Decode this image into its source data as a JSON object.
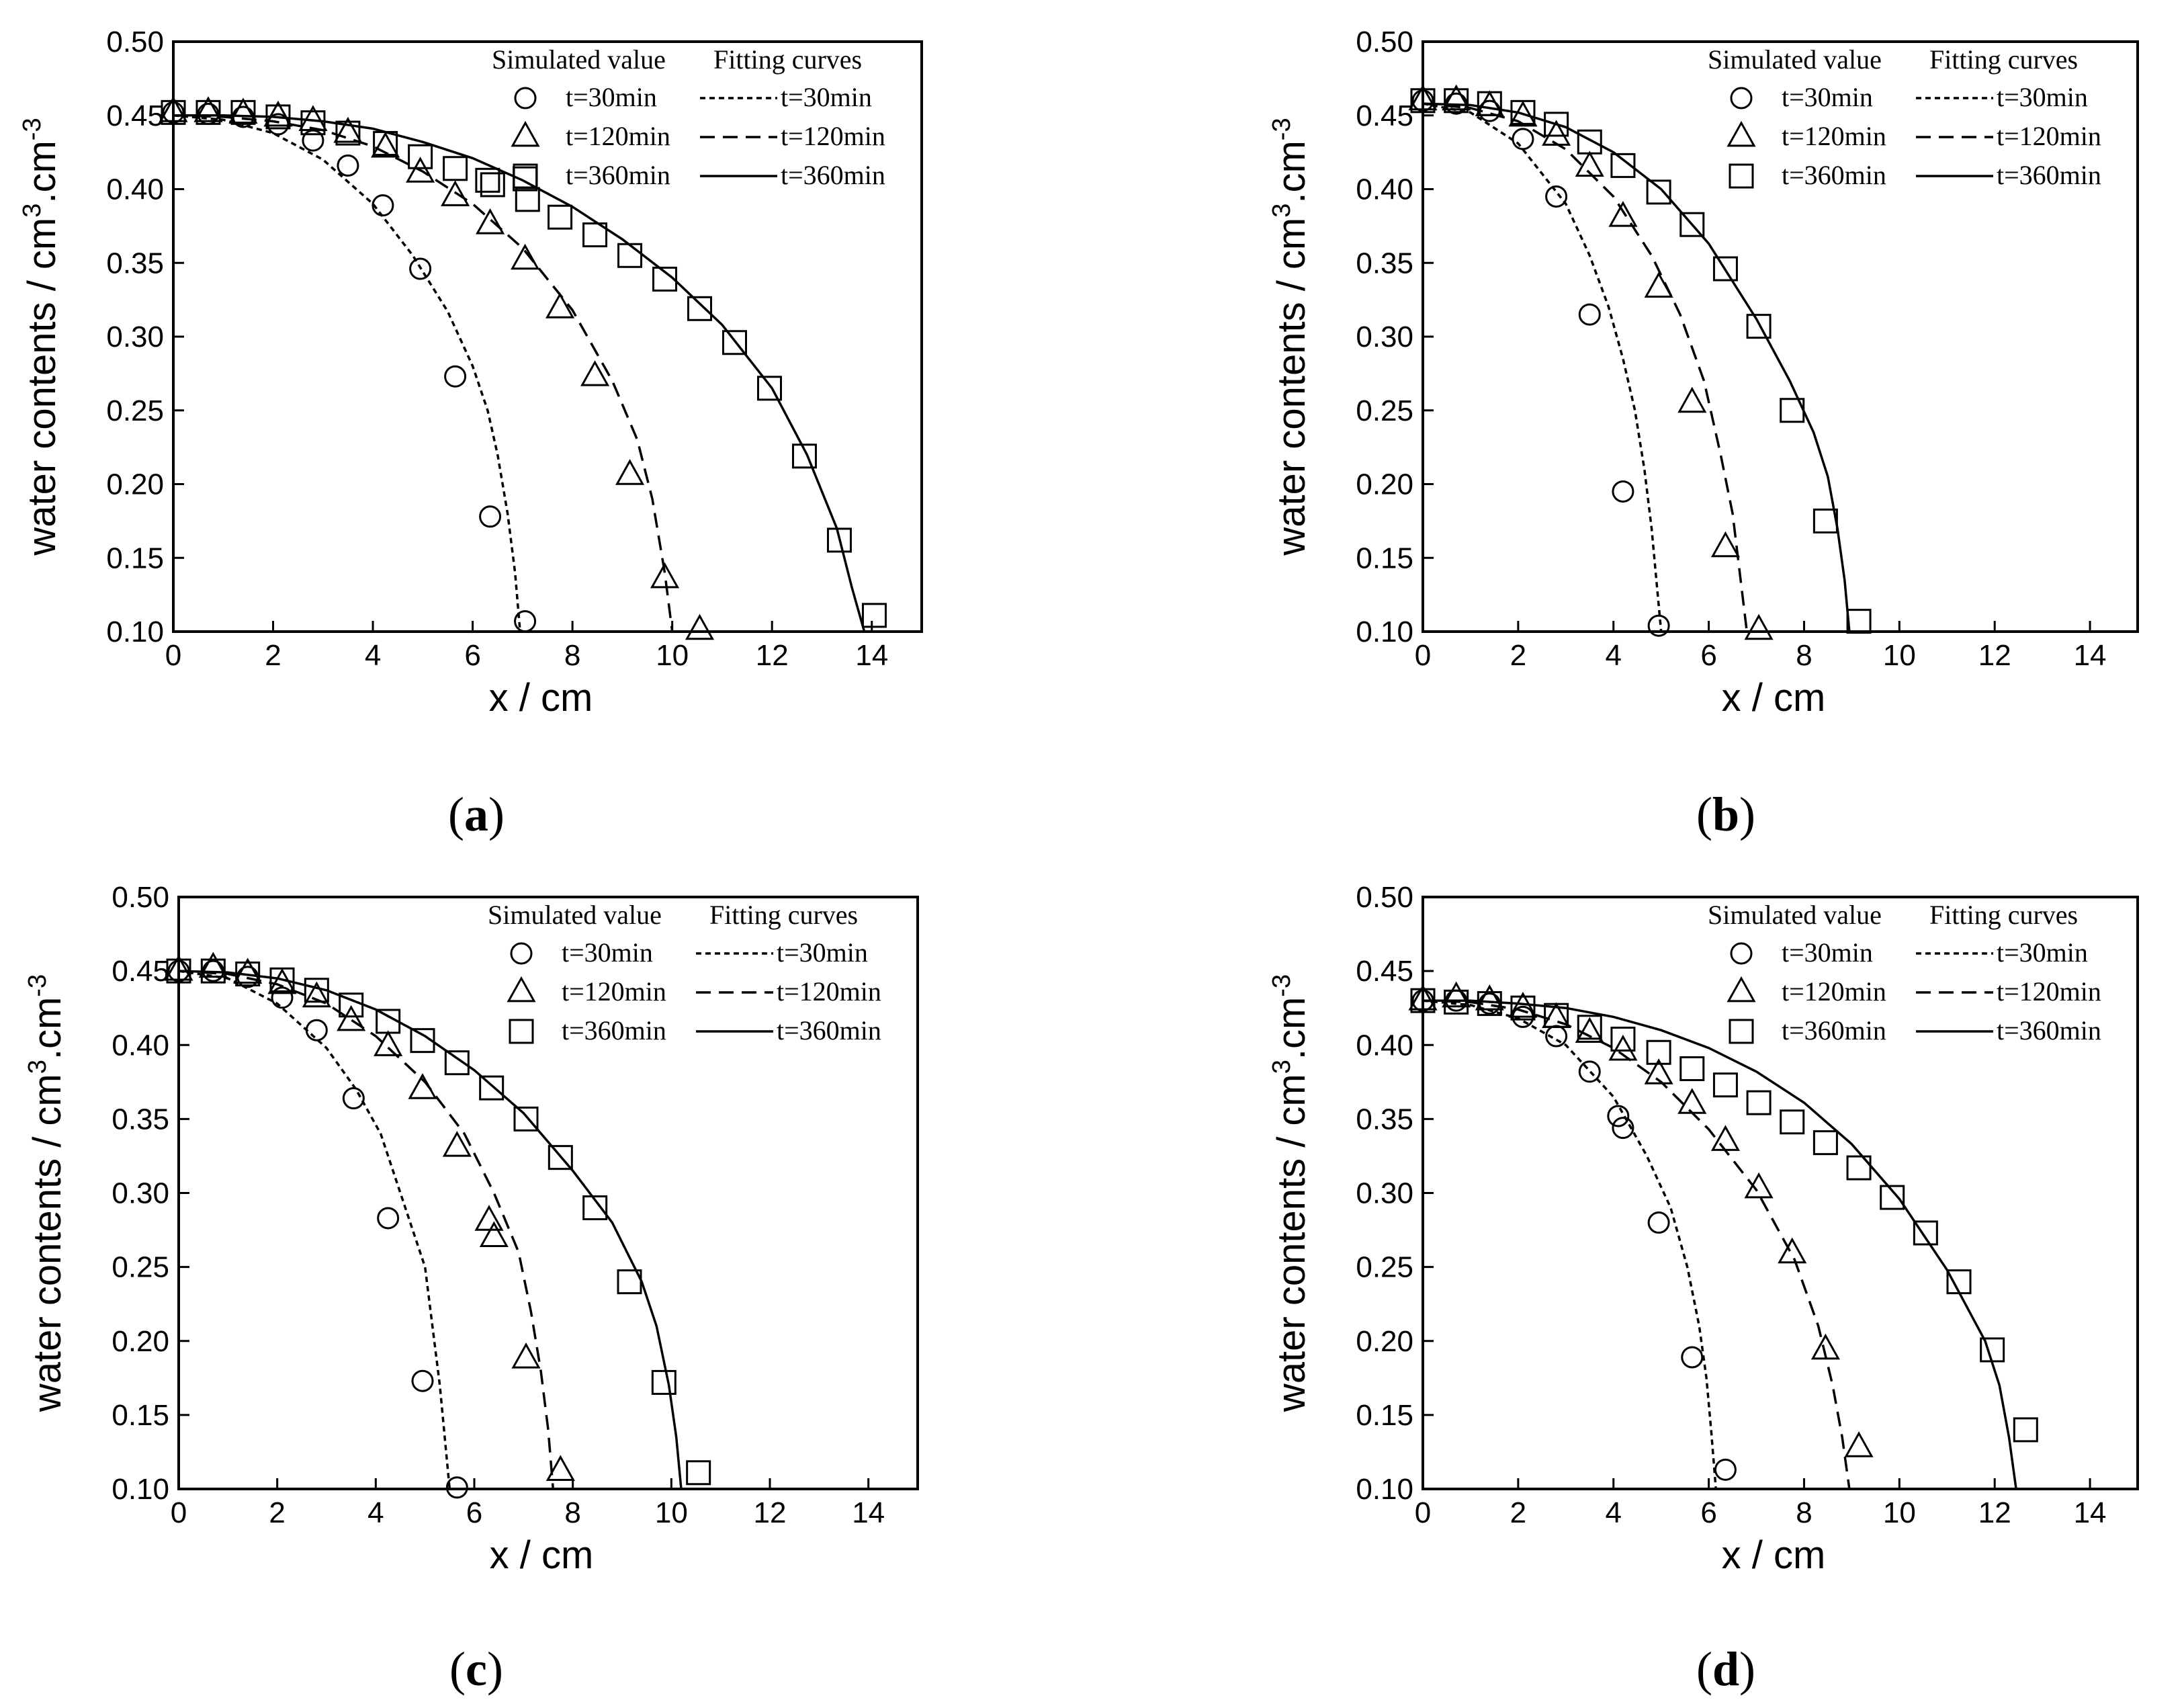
{
  "figure": {
    "panels": [
      {
        "tag_open": "(",
        "tag_letter": "a",
        "tag_close": ")"
      },
      {
        "tag_open": "(",
        "tag_letter": "b",
        "tag_close": ")"
      },
      {
        "tag_open": "(",
        "tag_letter": "c",
        "tag_close": ")"
      },
      {
        "tag_open": "(",
        "tag_letter": "d",
        "tag_close": ")"
      }
    ]
  },
  "chart_data": [
    {
      "type": "scatter",
      "panel": "a",
      "xlabel": "x / cm",
      "ylabel_base": "water contents / cm",
      "ylabel_sup1": "3",
      "ylabel_mid": ".cm",
      "ylabel_sup2": "-3",
      "xlim": [
        0,
        15
      ],
      "ylim": [
        0.1,
        0.5
      ],
      "xticks": [
        0,
        2,
        4,
        6,
        8,
        10,
        12,
        14
      ],
      "yticks": [
        "0.10",
        "0.15",
        "0.20",
        "0.25",
        "0.30",
        "0.35",
        "0.40",
        "0.45",
        "0.50"
      ],
      "legend_position": "top-right",
      "legend_sim_title": "Simulated value",
      "legend_fit_title": "Fitting curves",
      "simulated": [
        {
          "name": "t=30min",
          "marker": "circle",
          "x": [
            0,
            0.7,
            1.4,
            2.1,
            2.8,
            3.5,
            4.2,
            4.95,
            5.65,
            6.35,
            7.05
          ],
          "y": [
            0.452,
            0.451,
            0.449,
            0.444,
            0.433,
            0.416,
            0.389,
            0.346,
            0.273,
            0.178,
            0.107
          ]
        },
        {
          "name": "t=120min",
          "marker": "triangle",
          "x": [
            0,
            0.7,
            1.4,
            2.1,
            2.8,
            3.5,
            4.25,
            4.95,
            5.65,
            6.35,
            7.05,
            7.75,
            8.45,
            9.15,
            9.85,
            10.55
          ],
          "y": [
            0.452,
            0.452,
            0.451,
            0.449,
            0.446,
            0.438,
            0.428,
            0.411,
            0.395,
            0.376,
            0.352,
            0.319,
            0.273,
            0.206,
            0.136,
            0.101
          ]
        },
        {
          "name": "t=360min",
          "marker": "square",
          "x": [
            0,
            0.7,
            1.4,
            2.1,
            2.8,
            3.5,
            4.25,
            4.95,
            5.65,
            6.3,
            6.4,
            7.05,
            7.1,
            7.75,
            8.45,
            9.15,
            9.85,
            10.55,
            11.25,
            11.95,
            12.65,
            13.35,
            14.05
          ],
          "y": [
            0.452,
            0.452,
            0.452,
            0.449,
            0.445,
            0.438,
            0.431,
            0.422,
            0.414,
            0.406,
            0.403,
            0.407,
            0.393,
            0.381,
            0.369,
            0.355,
            0.339,
            0.319,
            0.296,
            0.265,
            0.219,
            0.162,
            0.111
          ]
        }
      ],
      "fitting": [
        {
          "name": "t=30min",
          "dash": "dotted",
          "x": [
            0,
            1,
            2,
            3,
            4,
            4.8,
            5.5,
            6.0,
            6.3,
            6.5,
            6.7,
            6.85,
            6.95
          ],
          "y": [
            0.45,
            0.447,
            0.438,
            0.42,
            0.39,
            0.355,
            0.317,
            0.28,
            0.25,
            0.22,
            0.18,
            0.14,
            0.1
          ]
        },
        {
          "name": "t=120min",
          "dash": "dashed",
          "x": [
            0,
            1,
            2,
            3,
            4,
            5,
            6,
            7,
            8,
            8.8,
            9.3,
            9.6,
            9.85,
            10.0
          ],
          "y": [
            0.45,
            0.449,
            0.446,
            0.44,
            0.429,
            0.412,
            0.39,
            0.36,
            0.318,
            0.27,
            0.23,
            0.19,
            0.14,
            0.1
          ]
        },
        {
          "name": "t=360min",
          "dash": "solid",
          "x": [
            0,
            1,
            2,
            3,
            4,
            5,
            6,
            7,
            8,
            9,
            10,
            11,
            12,
            12.7,
            13.3,
            13.6,
            13.85
          ],
          "y": [
            0.45,
            0.45,
            0.449,
            0.446,
            0.441,
            0.432,
            0.421,
            0.406,
            0.388,
            0.366,
            0.34,
            0.308,
            0.265,
            0.22,
            0.17,
            0.13,
            0.1
          ]
        }
      ]
    },
    {
      "type": "scatter",
      "panel": "b",
      "xlabel": "x / cm",
      "ylabel_base": "water contents / cm",
      "ylabel_sup1": "3",
      "ylabel_mid": ".cm",
      "ylabel_sup2": "-3",
      "xlim": [
        0,
        15
      ],
      "ylim": [
        0.1,
        0.5
      ],
      "xticks": [
        0,
        2,
        4,
        6,
        8,
        10,
        12,
        14
      ],
      "yticks": [
        "0.10",
        "0.15",
        "0.20",
        "0.25",
        "0.30",
        "0.35",
        "0.40",
        "0.45",
        "0.50"
      ],
      "legend_position": "top-right",
      "legend_sim_title": "Simulated value",
      "legend_fit_title": "Fitting curves",
      "simulated": [
        {
          "name": "t=30min",
          "marker": "circle",
          "x": [
            0,
            0.7,
            1.4,
            2.1,
            2.8,
            3.5,
            4.2,
            4.95
          ],
          "y": [
            0.46,
            0.458,
            0.453,
            0.434,
            0.395,
            0.315,
            0.195,
            0.104
          ]
        },
        {
          "name": "t=120min",
          "marker": "triangle",
          "x": [
            0,
            0.7,
            1.4,
            2.1,
            2.8,
            3.5,
            4.2,
            4.95,
            5.65,
            6.35,
            7.05
          ],
          "y": [
            0.46,
            0.46,
            0.456,
            0.449,
            0.436,
            0.415,
            0.381,
            0.333,
            0.255,
            0.157,
            0.101
          ]
        },
        {
          "name": "t=360min",
          "marker": "square",
          "x": [
            0,
            0.7,
            1.4,
            2.1,
            2.8,
            3.5,
            4.2,
            4.95,
            5.65,
            6.35,
            7.05,
            7.75,
            8.45,
            9.15
          ],
          "y": [
            0.46,
            0.46,
            0.458,
            0.452,
            0.444,
            0.432,
            0.416,
            0.398,
            0.376,
            0.346,
            0.307,
            0.25,
            0.175,
            0.107
          ]
        }
      ],
      "fitting": [
        {
          "name": "t=30min",
          "dash": "dotted",
          "x": [
            0,
            1,
            2,
            3,
            3.5,
            3.9,
            4.2,
            4.45,
            4.65,
            4.8,
            4.9,
            5.0
          ],
          "y": [
            0.458,
            0.452,
            0.431,
            0.39,
            0.355,
            0.32,
            0.285,
            0.25,
            0.21,
            0.17,
            0.135,
            0.1
          ]
        },
        {
          "name": "t=120min",
          "dash": "dashed",
          "x": [
            0,
            1,
            2,
            3,
            4,
            4.8,
            5.4,
            5.9,
            6.25,
            6.5,
            6.65,
            6.8
          ],
          "y": [
            0.458,
            0.455,
            0.446,
            0.427,
            0.395,
            0.355,
            0.315,
            0.27,
            0.22,
            0.18,
            0.14,
            0.1
          ]
        },
        {
          "name": "t=360min",
          "dash": "solid",
          "x": [
            0,
            1,
            2,
            3,
            4,
            5,
            6,
            7,
            7.7,
            8.2,
            8.5,
            8.7,
            8.85,
            8.95
          ],
          "y": [
            0.458,
            0.457,
            0.452,
            0.442,
            0.425,
            0.4,
            0.363,
            0.312,
            0.27,
            0.235,
            0.205,
            0.17,
            0.135,
            0.1
          ]
        }
      ]
    },
    {
      "type": "scatter",
      "panel": "c",
      "xlabel": "x / cm",
      "ylabel_base": "water contents / cm",
      "ylabel_sup1": "3",
      "ylabel_mid": ".cm",
      "ylabel_sup2": "-3",
      "xlim": [
        0,
        15
      ],
      "ylim": [
        0.1,
        0.5
      ],
      "xticks": [
        0,
        2,
        4,
        6,
        8,
        10,
        12,
        14
      ],
      "yticks": [
        "0.10",
        "0.15",
        "0.20",
        "0.25",
        "0.30",
        "0.35",
        "0.40",
        "0.45",
        "0.50"
      ],
      "legend_position": "top-right",
      "legend_sim_title": "Simulated value",
      "legend_fit_title": "Fitting curves",
      "simulated": [
        {
          "name": "t=30min",
          "marker": "circle",
          "x": [
            0,
            0.7,
            1.4,
            2.1,
            2.8,
            3.55,
            4.25,
            4.95,
            5.65
          ],
          "y": [
            0.45,
            0.45,
            0.446,
            0.432,
            0.41,
            0.364,
            0.283,
            0.173,
            0.101
          ]
        },
        {
          "name": "t=120min",
          "marker": "triangle",
          "x": [
            0,
            0.7,
            1.4,
            2.1,
            2.8,
            3.5,
            4.25,
            4.95,
            5.65,
            6.3,
            6.4,
            7.05,
            7.75
          ],
          "y": [
            0.45,
            0.452,
            0.448,
            0.441,
            0.432,
            0.416,
            0.399,
            0.37,
            0.331,
            0.281,
            0.27,
            0.188,
            0.112
          ]
        },
        {
          "name": "t=360min",
          "marker": "square",
          "x": [
            0,
            0.7,
            1.4,
            2.1,
            2.8,
            3.5,
            4.25,
            4.95,
            5.65,
            6.35,
            7.05,
            7.75,
            8.45,
            9.15,
            9.85,
            10.55
          ],
          "y": [
            0.45,
            0.45,
            0.448,
            0.444,
            0.437,
            0.427,
            0.416,
            0.403,
            0.388,
            0.371,
            0.35,
            0.324,
            0.29,
            0.24,
            0.172,
            0.111
          ]
        }
      ],
      "fitting": [
        {
          "name": "t=30min",
          "dash": "dotted",
          "x": [
            0,
            1,
            2,
            3,
            3.6,
            4.1,
            4.5,
            4.8,
            5.0,
            5.15,
            5.3,
            5.4,
            5.5
          ],
          "y": [
            0.45,
            0.445,
            0.428,
            0.398,
            0.37,
            0.34,
            0.3,
            0.27,
            0.25,
            0.21,
            0.17,
            0.135,
            0.1
          ]
        },
        {
          "name": "t=120min",
          "dash": "dashed",
          "x": [
            0,
            1,
            2,
            3,
            4,
            5,
            5.8,
            6.4,
            6.9,
            7.15,
            7.35,
            7.5,
            7.6
          ],
          "y": [
            0.45,
            0.448,
            0.441,
            0.428,
            0.406,
            0.375,
            0.34,
            0.3,
            0.26,
            0.22,
            0.18,
            0.14,
            0.1
          ]
        },
        {
          "name": "t=360min",
          "dash": "solid",
          "x": [
            0,
            1,
            2,
            3,
            4,
            5,
            6,
            7,
            8,
            8.8,
            9.4,
            9.7,
            9.95,
            10.1,
            10.2
          ],
          "y": [
            0.45,
            0.449,
            0.445,
            0.437,
            0.424,
            0.406,
            0.383,
            0.354,
            0.315,
            0.28,
            0.24,
            0.21,
            0.17,
            0.135,
            0.1
          ]
        }
      ]
    },
    {
      "type": "scatter",
      "panel": "d",
      "xlabel": "x / cm",
      "ylabel_base": "water contents / cm",
      "ylabel_sup1": "3",
      "ylabel_mid": ".cm",
      "ylabel_sup2": "-3",
      "xlim": [
        0,
        15
      ],
      "ylim": [
        0.1,
        0.5
      ],
      "xticks": [
        0,
        2,
        4,
        6,
        8,
        10,
        12,
        14
      ],
      "yticks": [
        "0.10",
        "0.15",
        "0.20",
        "0.25",
        "0.30",
        "0.35",
        "0.40",
        "0.45",
        "0.50"
      ],
      "legend_position": "top-right",
      "legend_sim_title": "Simulated value",
      "legend_fit_title": "Fitting curves",
      "simulated": [
        {
          "name": "t=30min",
          "marker": "circle",
          "x": [
            0,
            0.7,
            1.4,
            2.1,
            2.8,
            3.5,
            4.1,
            4.2,
            4.95,
            5.65,
            6.35
          ],
          "y": [
            0.43,
            0.43,
            0.428,
            0.419,
            0.406,
            0.382,
            0.352,
            0.344,
            0.28,
            0.189,
            0.113
          ]
        },
        {
          "name": "t=120min",
          "marker": "triangle",
          "x": [
            0,
            0.7,
            1.4,
            2.1,
            2.8,
            3.5,
            4.2,
            4.95,
            5.65,
            6.35,
            7.05,
            7.75,
            8.45,
            9.15
          ],
          "y": [
            0.43,
            0.432,
            0.43,
            0.425,
            0.418,
            0.408,
            0.396,
            0.38,
            0.36,
            0.335,
            0.303,
            0.259,
            0.194,
            0.128
          ]
        },
        {
          "name": "t=360min",
          "marker": "square",
          "x": [
            0,
            0.7,
            1.4,
            2.1,
            2.8,
            3.5,
            4.2,
            4.95,
            5.65,
            6.35,
            7.05,
            7.75,
            8.45,
            9.15,
            9.85,
            10.55,
            11.25,
            11.95,
            12.65
          ],
          "y": [
            0.43,
            0.429,
            0.428,
            0.425,
            0.42,
            0.412,
            0.404,
            0.395,
            0.384,
            0.373,
            0.361,
            0.348,
            0.334,
            0.317,
            0.297,
            0.273,
            0.24,
            0.194,
            0.14
          ]
        }
      ],
      "fitting": [
        {
          "name": "t=30min",
          "dash": "dotted",
          "x": [
            0,
            1,
            2,
            3,
            4,
            4.7,
            5.2,
            5.55,
            5.8,
            5.95,
            6.05,
            6.15
          ],
          "y": [
            0.43,
            0.427,
            0.418,
            0.4,
            0.365,
            0.325,
            0.29,
            0.25,
            0.21,
            0.175,
            0.14,
            0.1
          ]
        },
        {
          "name": "t=120min",
          "dash": "dashed",
          "x": [
            0,
            1,
            2,
            3,
            4,
            5,
            6,
            7,
            7.8,
            8.3,
            8.6,
            8.8,
            8.95
          ],
          "y": [
            0.43,
            0.429,
            0.424,
            0.414,
            0.398,
            0.375,
            0.343,
            0.302,
            0.255,
            0.21,
            0.17,
            0.135,
            0.1
          ]
        },
        {
          "name": "t=360min",
          "dash": "solid",
          "x": [
            0,
            1,
            2,
            3,
            4,
            5,
            6,
            7,
            8,
            9,
            10,
            11,
            11.8,
            12.1,
            12.3,
            12.45
          ],
          "y": [
            0.43,
            0.43,
            0.428,
            0.425,
            0.419,
            0.41,
            0.398,
            0.382,
            0.361,
            0.333,
            0.296,
            0.248,
            0.2,
            0.17,
            0.135,
            0.1
          ]
        }
      ]
    }
  ]
}
